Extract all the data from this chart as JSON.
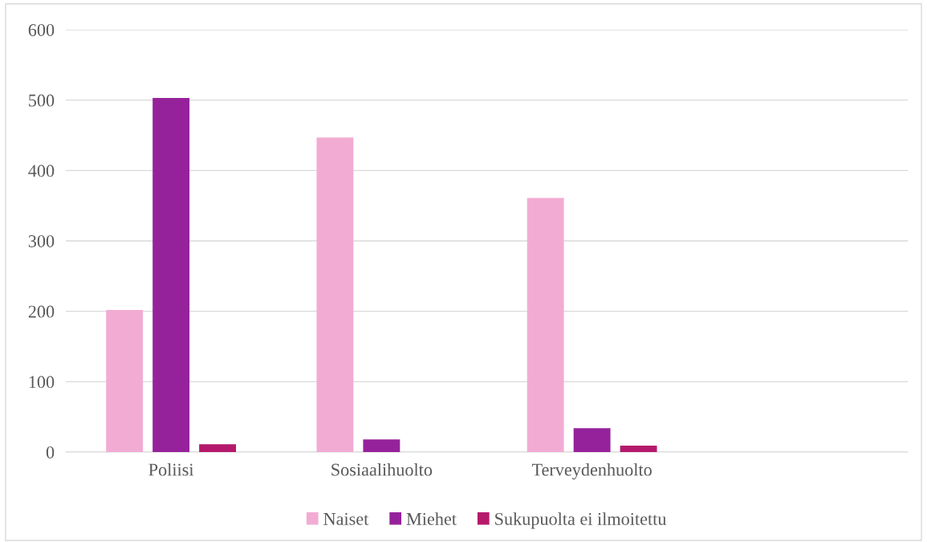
{
  "chart_data": {
    "type": "bar",
    "categories": [
      "Poliisi",
      "Sosiaalihuolto",
      "Terveydenhuolto",
      null
    ],
    "series": [
      {
        "name": "Naiset",
        "color": "#f2acd3",
        "values": [
          202,
          447,
          361,
          null
        ]
      },
      {
        "name": "Miehet",
        "color": "#95229b",
        "values": [
          503,
          18,
          34,
          null
        ]
      },
      {
        "name": "Sukupuolta ei ilmoitettu",
        "color": "#b5196b",
        "values": [
          11,
          null,
          9,
          null
        ]
      }
    ],
    "ylim": [
      0,
      600
    ],
    "yticks": [
      0,
      100,
      200,
      300,
      400,
      500,
      600
    ],
    "grid": "y",
    "legend": "bottom"
  }
}
